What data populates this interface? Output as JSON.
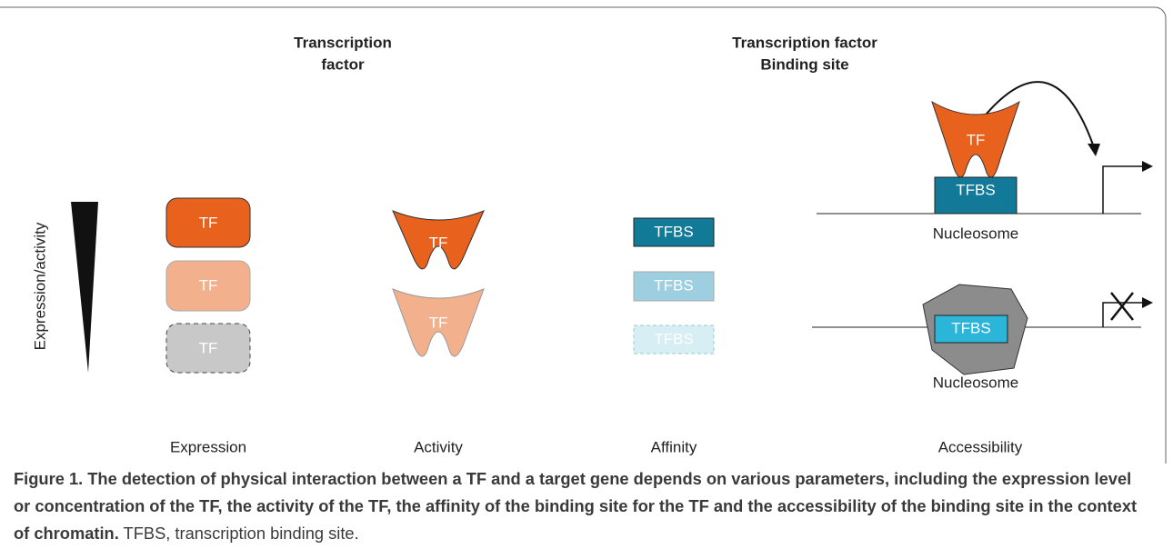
{
  "headers": {
    "tf": [
      "Transcription",
      "factor"
    ],
    "tfbs": [
      "Transcription factor",
      "Binding site"
    ]
  },
  "axis_label": "Expression/activity",
  "expression": {
    "boxes": [
      "TF",
      "TF",
      "TF"
    ],
    "label": "Expression"
  },
  "activity": {
    "shapes": [
      "TF",
      "TF"
    ],
    "label": "Activity"
  },
  "affinity": {
    "sites": [
      "TFBS",
      "TFBS",
      "TFBS"
    ],
    "label": "Affinity"
  },
  "accessibility": {
    "open": {
      "tf": "TF",
      "site": "TFBS",
      "nucleosome": "Nucleosome"
    },
    "closed": {
      "site": "TFBS",
      "nucleosome": "Nucleosome"
    },
    "label": "Accessibility"
  },
  "caption": {
    "title": "Figure 1. The detection of physical interaction between a TF and a target gene depends on various parameters, including the expression level or concentration of the TF, the activity of the TF, the affinity of the binding site for the TF and the accessibility of the binding site in the context of chromatin.",
    "text": "TFBS, transcription binding site."
  }
}
